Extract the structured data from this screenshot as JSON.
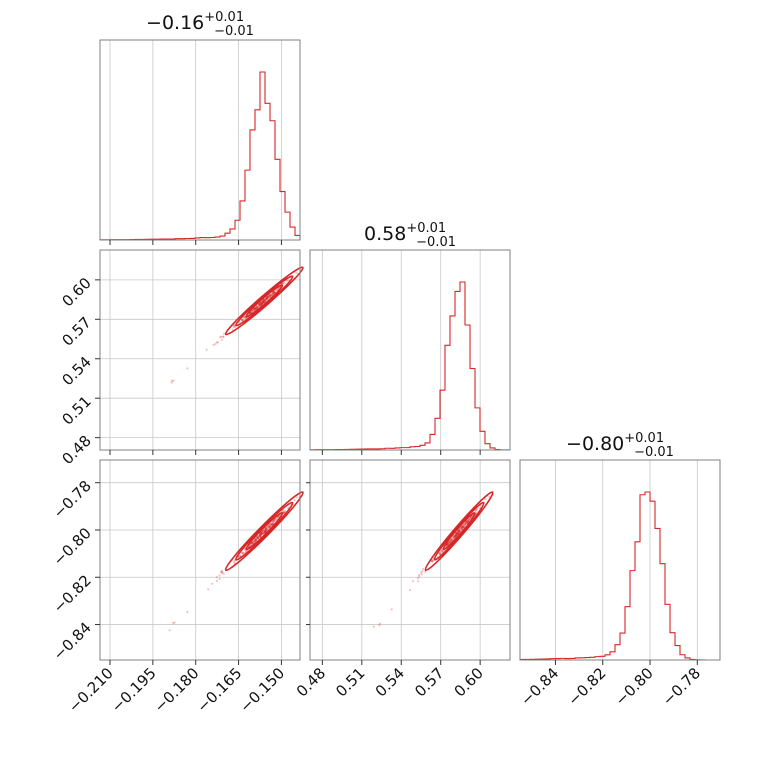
{
  "chart_data": {
    "type": "corner",
    "color": "#d62728",
    "parameters": [
      {
        "title_main": "−0.16",
        "title_plus": "+0.01",
        "title_minus": "−0.01",
        "range": [
          -0.2135,
          -0.1435
        ],
        "ticks": [
          -0.21,
          -0.195,
          -0.18,
          -0.165,
          -0.15
        ],
        "tick_labels": [
          "−0.210",
          "−0.195",
          "−0.180",
          "−0.165",
          "−0.150"
        ],
        "median": -0.156,
        "sigma": 0.0045,
        "skew": 3.5
      },
      {
        "title_main": "0.58",
        "title_plus": "+0.01",
        "title_minus": "−0.01",
        "range": [
          0.4706,
          0.6227
        ],
        "ticks": [
          0.48,
          0.51,
          0.54,
          0.57,
          0.6
        ],
        "tick_labels": [
          "0.48",
          "0.51",
          "0.54",
          "0.57",
          "0.60"
        ],
        "median": 0.584,
        "sigma": 0.0085,
        "skew": 3.5
      },
      {
        "title_main": "−0.80",
        "title_plus": "+0.01",
        "title_minus": "−0.01",
        "range": [
          -0.855,
          -0.7704
        ],
        "ticks": [
          -0.84,
          -0.82,
          -0.8,
          -0.78
        ],
        "tick_labels": [
          "−0.84",
          "−0.82",
          "−0.80",
          "−0.78"
        ],
        "median": -0.8005,
        "sigma": 0.0055,
        "skew": 3.5
      }
    ],
    "grid": true,
    "bins": 40
  }
}
